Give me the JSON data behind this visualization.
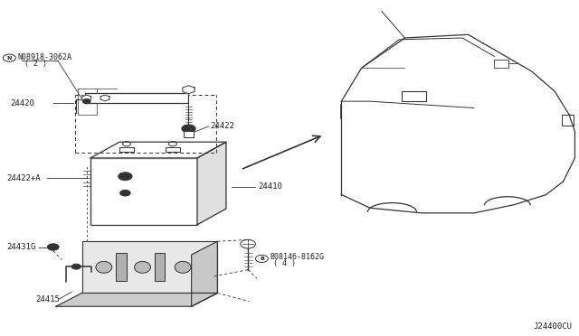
{
  "bg_color": "#ffffff",
  "line_color": "#333333",
  "text_color": "#222222",
  "fig_width": 6.4,
  "fig_height": 3.72,
  "dpi": 100,
  "watermark": "J24400CU",
  "part_labels": {
    "battery": "24410",
    "clamp": "24420",
    "nut": "N08918-3062A",
    "nut_qty": "( 2 )",
    "rod": "24422",
    "rod_alt": "24422+A",
    "bracket": "24431G",
    "tray": "24415",
    "bolt": "B08146-8162G",
    "bolt_qty": "( 4 )"
  }
}
